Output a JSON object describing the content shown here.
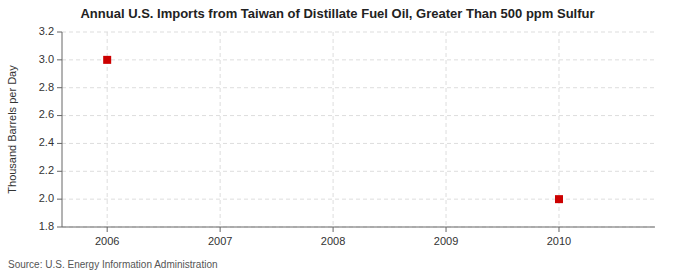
{
  "chart_data": {
    "type": "scatter",
    "title": "Annual U.S. Imports from Taiwan of Distillate Fuel Oil, Greater Than 500 ppm Sulfur",
    "y_label": "Thousand Barrels per Day",
    "source": "Source: U.S. Energy Information Administration",
    "x": [
      2006,
      2010
    ],
    "values": [
      3.0,
      2.0
    ],
    "color": "#cc0000",
    "marker": "square",
    "xlim": [
      2005.6,
      2010.85
    ],
    "ylim": [
      1.8,
      3.2
    ],
    "xticks": [
      2006,
      2007,
      2008,
      2009,
      2010
    ],
    "yticks": [
      1.8,
      {
        "value": 2.0,
        "label": "2.0"
      },
      2.2,
      2.4,
      2.6,
      2.8,
      {
        "value": 3.0,
        "label": "3.0"
      },
      3.2
    ],
    "grid": true
  }
}
